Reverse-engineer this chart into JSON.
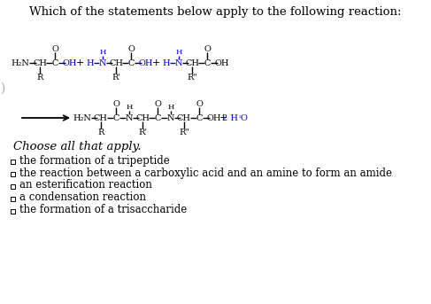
{
  "title": "Which of the statements below apply to the following reaction:",
  "bg_color": "#ffffff",
  "text_color": "#000000",
  "blue_color": "#0000cd",
  "fig_width": 4.87,
  "fig_height": 3.43,
  "dpi": 100,
  "choose_label": "Choose all that apply.",
  "choice_texts": [
    "the formation of a tripeptide",
    "the reaction between a carboxylic acid and an amine to form an amide",
    "an esterification reaction",
    "a condensation reaction",
    "the formation of a trisaccharide"
  ]
}
